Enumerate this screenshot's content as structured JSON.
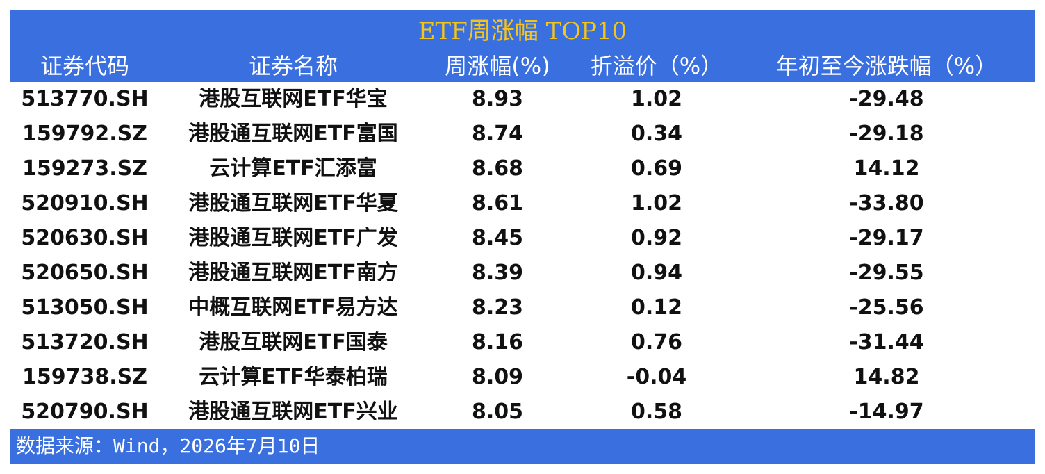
{
  "table": {
    "title": "ETF周涨幅 TOP10",
    "header": [
      "证券代码",
      "证券名称",
      "周涨幅(%)",
      "折溢价（%）",
      "年初至今涨跌幅（%）"
    ],
    "rows": [
      [
        "513770.SH",
        "港股互联网ETF华宝",
        "8.93",
        "1.02",
        "-29.48"
      ],
      [
        "159792.SZ",
        "港股通互联网ETF富国",
        "8.74",
        "0.34",
        "-29.18"
      ],
      [
        "159273.SZ",
        "云计算ETF汇添富",
        "8.68",
        "0.69",
        "14.12"
      ],
      [
        "520910.SH",
        "港股通互联网ETF华夏",
        "8.61",
        "1.02",
        "-33.80"
      ],
      [
        "520630.SH",
        "港股通互联网ETF广发",
        "8.45",
        "0.92",
        "-29.17"
      ],
      [
        "520650.SH",
        "港股通互联网ETF南方",
        "8.39",
        "0.94",
        "-29.55"
      ],
      [
        "513050.SH",
        "中概互联网ETF易方达",
        "8.23",
        "0.12",
        "-25.56"
      ],
      [
        "513720.SH",
        "港股互联网ETF国泰",
        "8.16",
        "0.76",
        "-31.44"
      ],
      [
        "159738.SZ",
        "云计算ETF华泰柏瑞",
        "8.09",
        "-0.04",
        "14.82"
      ],
      [
        "520790.SH",
        "港股通互联网ETF兴业",
        "8.05",
        "0.58",
        "-14.97"
      ]
    ],
    "source": "数据来源：Wind，2026年7月10日"
  }
}
